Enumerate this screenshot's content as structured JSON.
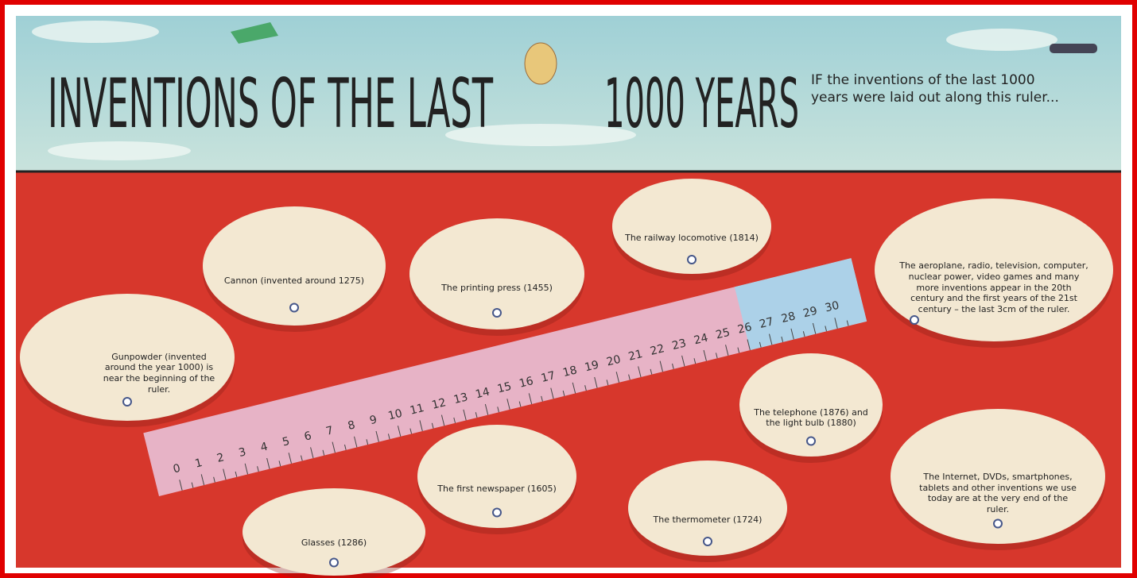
{
  "header": {
    "title_left": "INVENTIONS OF THE LAST",
    "title_right": "1000 YEARS",
    "subtitle": "IF the inventions of the last 1000 years were laid out along this ruler..."
  },
  "ruler": {
    "ticks": [
      0,
      1,
      2,
      3,
      4,
      5,
      6,
      7,
      8,
      9,
      10,
      11,
      12,
      13,
      14,
      15,
      16,
      17,
      18,
      19,
      20,
      21,
      22,
      23,
      24,
      25,
      26,
      27,
      28,
      29,
      30
    ]
  },
  "callouts": [
    {
      "text": "Gunpowder (invented around the year 1000) is near the beginning of the ruler."
    },
    {
      "text": "Cannon (invented around 1275)"
    },
    {
      "text": "The printing press (1455)"
    },
    {
      "text": "The railway locomotive (1814)"
    },
    {
      "text": "The aeroplane, radio, television, computer, nuclear power, video games and many more inventions appear in the 20th century and the first years of the 21st century – the last 3cm of the ruler."
    },
    {
      "text": "Glasses (1286)"
    },
    {
      "text": "The first newspaper (1605)"
    },
    {
      "text": "The thermometer (1724)"
    },
    {
      "text": "The telephone (1876) and the light bulb (1880)"
    },
    {
      "text": "The Internet, DVDs, smartphones, tablets and other inventions we use today are at the very end of the ruler."
    }
  ]
}
